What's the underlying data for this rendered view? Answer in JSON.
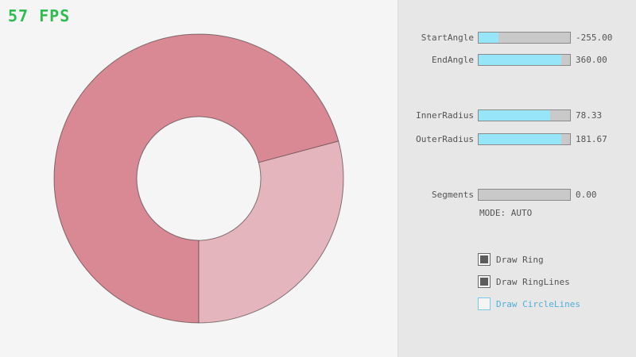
{
  "fps": {
    "label": "57 FPS",
    "color": "#2fbd4f"
  },
  "ring": {
    "start_angle": -255.0,
    "end_angle": 360.0,
    "inner_radius": 78.33,
    "outer_radius": 181.67,
    "segments": 0.0,
    "mode": "AUTO",
    "colors": {
      "ring_overlap": "#d98994",
      "ring_single": "#e4b5bc",
      "outline": "rgba(0,0,0,0.45)",
      "background": "#f5f5f5",
      "slider_fill": "#97e5f8"
    }
  },
  "panel": {
    "sliders": [
      {
        "id": "start-angle",
        "label": "StartAngle",
        "value": "-255.00",
        "fill_pct": 21.7
      },
      {
        "id": "end-angle",
        "label": "EndAngle",
        "value": "360.00",
        "fill_pct": 90.0
      },
      {
        "id": "inner-radius",
        "label": "InnerRadius",
        "value": "78.33",
        "fill_pct": 78.3
      },
      {
        "id": "outer-radius",
        "label": "OuterRadius",
        "value": "181.67",
        "fill_pct": 90.8
      },
      {
        "id": "segments",
        "label": "Segments",
        "value": "0.00",
        "fill_pct": 0
      }
    ],
    "mode_text": "MODE: AUTO",
    "checkboxes": [
      {
        "id": "draw-ring",
        "label": "Draw Ring",
        "checked": true
      },
      {
        "id": "draw-ringlines",
        "label": "Draw RingLines",
        "checked": true
      },
      {
        "id": "draw-circlelines",
        "label": "Draw CircleLines",
        "checked": false
      }
    ]
  }
}
